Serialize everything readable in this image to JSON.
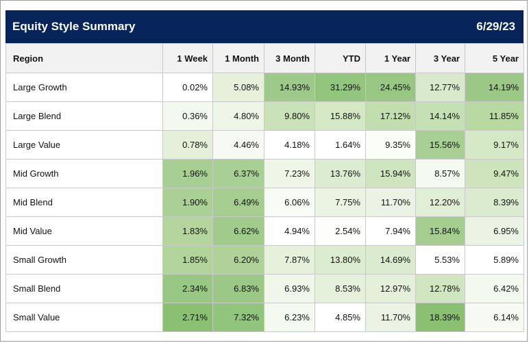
{
  "header": {
    "title": "Equity Style Summary",
    "date": "6/29/23"
  },
  "table": {
    "columns": [
      "Region",
      "1 Week",
      "1 Month",
      "3 Month",
      "YTD",
      "1 Year",
      "3 Year",
      "5 Year"
    ],
    "rows": [
      {
        "region": "Large Growth",
        "values": [
          "0.02%",
          "5.08%",
          "14.93%",
          "31.29%",
          "24.45%",
          "12.77%",
          "14.19%"
        ],
        "colors": [
          "#ffffff",
          "#e6f1dc",
          "#9ec98a",
          "#93c57e",
          "#98c784",
          "#d8eacb",
          "#9bc887"
        ]
      },
      {
        "region": "Large Blend",
        "values": [
          "0.36%",
          "4.80%",
          "9.80%",
          "15.88%",
          "17.12%",
          "14.14%",
          "11.85%"
        ],
        "colors": [
          "#f4f9f0",
          "#eef6e8",
          "#c9e2b8",
          "#d4e8c6",
          "#c2deae",
          "#c5e0b2",
          "#b9d9a2"
        ]
      },
      {
        "region": "Large Value",
        "values": [
          "0.78%",
          "4.46%",
          "4.18%",
          "1.64%",
          "9.35%",
          "15.56%",
          "9.17%"
        ],
        "colors": [
          "#e4f0da",
          "#f6faf3",
          "#ffffff",
          "#ffffff",
          "#fbfdf9",
          "#a9d094",
          "#d4e8c6"
        ]
      },
      {
        "region": "Mid Growth",
        "values": [
          "1.96%",
          "6.37%",
          "7.23%",
          "13.76%",
          "15.94%",
          "8.57%",
          "9.47%"
        ],
        "colors": [
          "#a8cf93",
          "#a9d094",
          "#eef6e8",
          "#dcecd0",
          "#cfe5c0",
          "#f5faf1",
          "#cde4bd"
        ]
      },
      {
        "region": "Mid Blend",
        "values": [
          "1.90%",
          "6.49%",
          "6.06%",
          "7.75%",
          "11.70%",
          "12.20%",
          "8.39%"
        ],
        "colors": [
          "#abd096",
          "#a4cd8f",
          "#f8fbf5",
          "#eaf4e3",
          "#ebf4e4",
          "#e0eed5",
          "#dbebcf"
        ]
      },
      {
        "region": "Mid Value",
        "values": [
          "1.83%",
          "6.62%",
          "4.94%",
          "2.54%",
          "7.94%",
          "15.84%",
          "6.95%"
        ],
        "colors": [
          "#b4d69e",
          "#a0cb8b",
          "#ffffff",
          "#fdfefc",
          "#ffffff",
          "#a4cd8f",
          "#ebf4e4"
        ]
      },
      {
        "region": "Small Growth",
        "values": [
          "1.85%",
          "6.20%",
          "7.87%",
          "13.80%",
          "14.69%",
          "5.53%",
          "5.89%"
        ],
        "colors": [
          "#b1d49b",
          "#aed298",
          "#e6f1dc",
          "#dcecd0",
          "#daebce",
          "#ffffff",
          "#ffffff"
        ]
      },
      {
        "region": "Small Blend",
        "values": [
          "2.34%",
          "6.83%",
          "6.93%",
          "8.53%",
          "12.97%",
          "12.78%",
          "6.42%"
        ],
        "colors": [
          "#98c784",
          "#9bc887",
          "#f0f7ea",
          "#e6f1dc",
          "#e4f0da",
          "#d0e6c1",
          "#f4f9f0"
        ]
      },
      {
        "region": "Small Value",
        "values": [
          "2.71%",
          "7.32%",
          "6.23%",
          "4.85%",
          "11.70%",
          "18.39%",
          "6.14%"
        ],
        "colors": [
          "#8bc073",
          "#91c47c",
          "#f5faf1",
          "#ffffff",
          "#ebf4e4",
          "#8bc073",
          "#f6faf3"
        ]
      }
    ]
  }
}
